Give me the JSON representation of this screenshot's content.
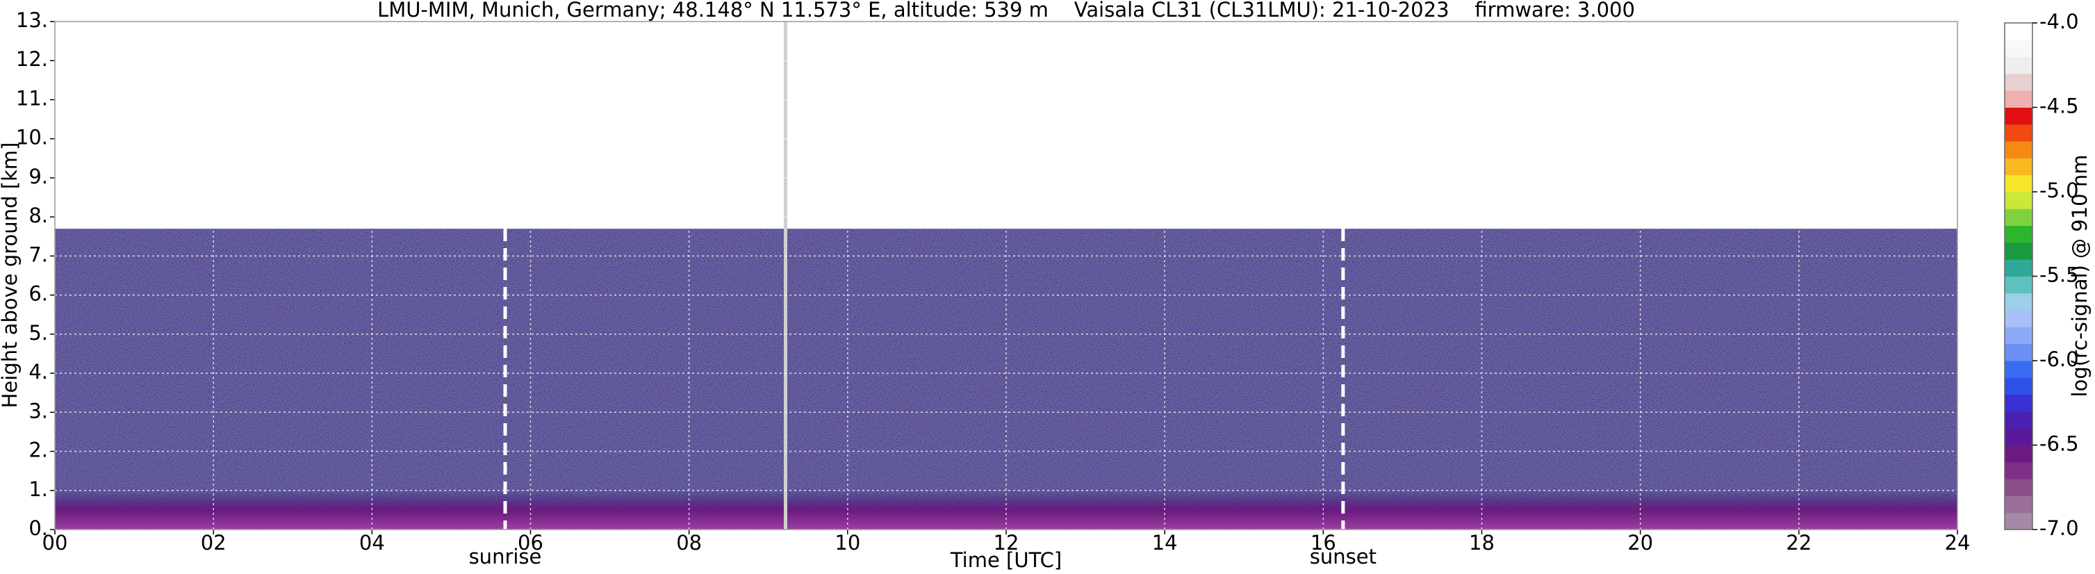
{
  "chart_data": {
    "type": "heatmap",
    "title": "LMU-MIM, Munich, Germany; 48.148° N 11.573° E, altitude: 539 m    Vaisala CL31 (CL31LMU): 21-10-2023    firmware: 3.000",
    "xlabel": "Time [UTC]",
    "ylabel": "Height above ground [km]",
    "xlim": [
      0,
      24
    ],
    "ylim": [
      0,
      13
    ],
    "xticks": [
      {
        "value": 0,
        "label": "00"
      },
      {
        "value": 2,
        "label": "02"
      },
      {
        "value": 4,
        "label": "04"
      },
      {
        "value": 6,
        "label": "06"
      },
      {
        "value": 8,
        "label": "08"
      },
      {
        "value": 10,
        "label": "10"
      },
      {
        "value": 12,
        "label": "12"
      },
      {
        "value": 14,
        "label": "14"
      },
      {
        "value": 16,
        "label": "16"
      },
      {
        "value": 18,
        "label": "18"
      },
      {
        "value": 20,
        "label": "20"
      },
      {
        "value": 22,
        "label": "22"
      },
      {
        "value": 24,
        "label": "24"
      }
    ],
    "yticks": [
      {
        "value": 0,
        "label": "0."
      },
      {
        "value": 1,
        "label": "1."
      },
      {
        "value": 2,
        "label": "2."
      },
      {
        "value": 3,
        "label": "3."
      },
      {
        "value": 4,
        "label": "4."
      },
      {
        "value": 5,
        "label": "5."
      },
      {
        "value": 6,
        "label": "6."
      },
      {
        "value": 7,
        "label": "7."
      },
      {
        "value": 8,
        "label": "8."
      },
      {
        "value": 9,
        "label": "9."
      },
      {
        "value": 10,
        "label": "10."
      },
      {
        "value": 11,
        "label": "11."
      },
      {
        "value": 12,
        "label": "12."
      },
      {
        "value": 13,
        "label": "13."
      }
    ],
    "grid": true,
    "annotations": [
      {
        "x": 5.68,
        "label": "sunrise"
      },
      {
        "x": 16.25,
        "label": "sunset"
      }
    ],
    "colorbar": {
      "label": "log(rc-signal) @ 910 nm",
      "clim": [
        -7,
        -4
      ],
      "ticks": [
        {
          "value": -4,
          "label": "-4.0"
        },
        {
          "value": -4.5,
          "label": "-4.5"
        },
        {
          "value": -5,
          "label": "-5.0"
        },
        {
          "value": -5.5,
          "label": "-5.5"
        },
        {
          "value": -6,
          "label": "-6.0"
        },
        {
          "value": -6.5,
          "label": "-6.5"
        },
        {
          "value": -7,
          "label": "-7.0"
        }
      ],
      "colors": [
        "#a58aa5",
        "#9a6f9a",
        "#8c4f8c",
        "#7d2f85",
        "#6a1a80",
        "#5a189a",
        "#4b1fb0",
        "#3a2fd0",
        "#2f50e8",
        "#3a6cf0",
        "#6a8ff5",
        "#8ca8f8",
        "#a9bff9",
        "#9ccfe8",
        "#5fc0c0",
        "#30a898",
        "#1a9a40",
        "#2db52d",
        "#7fd23f",
        "#c9e83a",
        "#f5e62a",
        "#f7b820",
        "#f58a15",
        "#f04a10",
        "#e01010",
        "#f0b0b0",
        "#e8d0d0",
        "#eeeeee",
        "#f8f8f8",
        "#ffffff"
      ]
    }
  }
}
